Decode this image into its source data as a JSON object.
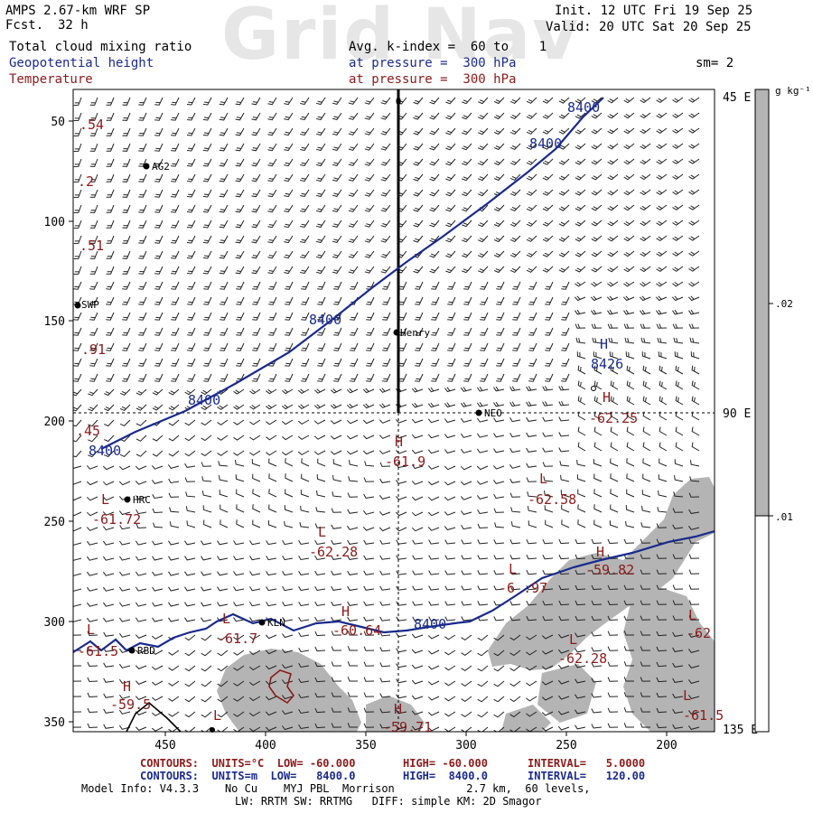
{
  "header": {
    "model": "AMPS 2.67-km WRF SP",
    "fcst_label": "Fcst.",
    "fcst_value": "32 h",
    "init": "Init. 12 UTC Fri 19 Sep 25",
    "valid": "Valid: 20 UTC Sat 20 Sep 25",
    "watermark": "Grid Nav",
    "field1": "Total cloud mixing ratio",
    "field2": "Geopotential height",
    "field3": "Temperature",
    "avg_line": "Avg. k-index =  60 to    1",
    "pressure1": "at pressure =  300 hPa",
    "pressure2": "at pressure =  300 hPa",
    "sm": "sm= 2"
  },
  "colorbar": {
    "units": "g kg⁻¹",
    "ticks": [
      ".02",
      ".01"
    ],
    "fill_color": "#b4b4b4"
  },
  "axes": {
    "y_ticks": [
      "50",
      "100",
      "150",
      "200",
      "250",
      "300",
      "350"
    ],
    "x_ticks": [
      "450",
      "400",
      "350",
      "300",
      "250",
      "200"
    ],
    "right_labels": [
      "45 E",
      "90 E",
      "135 E"
    ],
    "top_marker": "0"
  },
  "stations": [
    {
      "name": "AG2"
    },
    {
      "name": "SWP"
    },
    {
      "name": "Henry"
    },
    {
      "name": "NEO"
    },
    {
      "name": "HRC"
    },
    {
      "name": "KLN"
    },
    {
      "name": "RBD"
    }
  ],
  "height_labels": [
    "8400",
    "8400",
    "8400",
    "8400",
    "8400",
    "8400",
    "8426"
  ],
  "temp_labels": [
    ".54",
    ".2",
    ".51",
    ".91",
    ".45",
    "-61.9",
    "-62.25",
    "-62.58",
    "-61.72",
    "-62.28",
    "-59.82",
    "-6 .97",
    "-60.64",
    "-61.7",
    "-61.5",
    "-62.28",
    "-59.5",
    "-59.71",
    "-61.5",
    "-62"
  ],
  "hl_markers": [
    "H",
    "H",
    "H",
    "L",
    "L",
    "L",
    "H",
    "L",
    "H",
    "L",
    "L",
    "L",
    "H",
    "L",
    "L",
    "H",
    "L"
  ],
  "footer": {
    "red_line": [
      "CONTOURS:  UNITS=°C  LOW= -60.000",
      "HIGH= -60.000",
      "INTERVAL=   5.0000"
    ],
    "blue_line": [
      "CONTOURS:  UNITS=m  LOW=   8400.0",
      "HIGH=  8400.0",
      "INTERVAL=   120.00"
    ],
    "info1": "Model Info: V4.3.3    No Cu    MYJ PBL  Morrison           2.7 km,  60 levels,",
    "info2": "LW: RRTM SW: RRTMG   DIFF: simple KM: 2D Smagor"
  }
}
